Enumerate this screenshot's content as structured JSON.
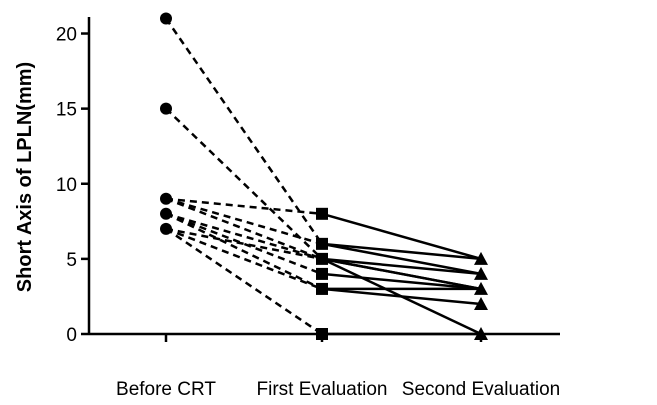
{
  "chart_data": {
    "type": "line",
    "title": "",
    "xlabel": "",
    "ylabel": "Short Axis of LPLN(mm)",
    "categories": [
      "Before CRT",
      "First Evaluation",
      "Second Evaluation"
    ],
    "ylim": [
      0,
      21
    ],
    "yticks": [
      0,
      5,
      10,
      15,
      20
    ],
    "grid": false,
    "legend": "none",
    "markers": [
      "circle",
      "square",
      "triangle"
    ],
    "line_styles": [
      "dashed",
      "solid"
    ],
    "series": [
      {
        "values": [
          21,
          6,
          5
        ]
      },
      {
        "values": [
          15,
          5,
          3
        ]
      },
      {
        "values": [
          9,
          8,
          5
        ]
      },
      {
        "values": [
          9,
          6,
          4
        ]
      },
      {
        "values": [
          9,
          5,
          3
        ]
      },
      {
        "values": [
          8,
          5,
          4
        ]
      },
      {
        "values": [
          8,
          4,
          3
        ]
      },
      {
        "values": [
          8,
          3,
          3
        ]
      },
      {
        "values": [
          7,
          5,
          0
        ]
      },
      {
        "values": [
          7,
          3,
          2
        ]
      },
      {
        "values": [
          7,
          0,
          0
        ]
      }
    ]
  }
}
